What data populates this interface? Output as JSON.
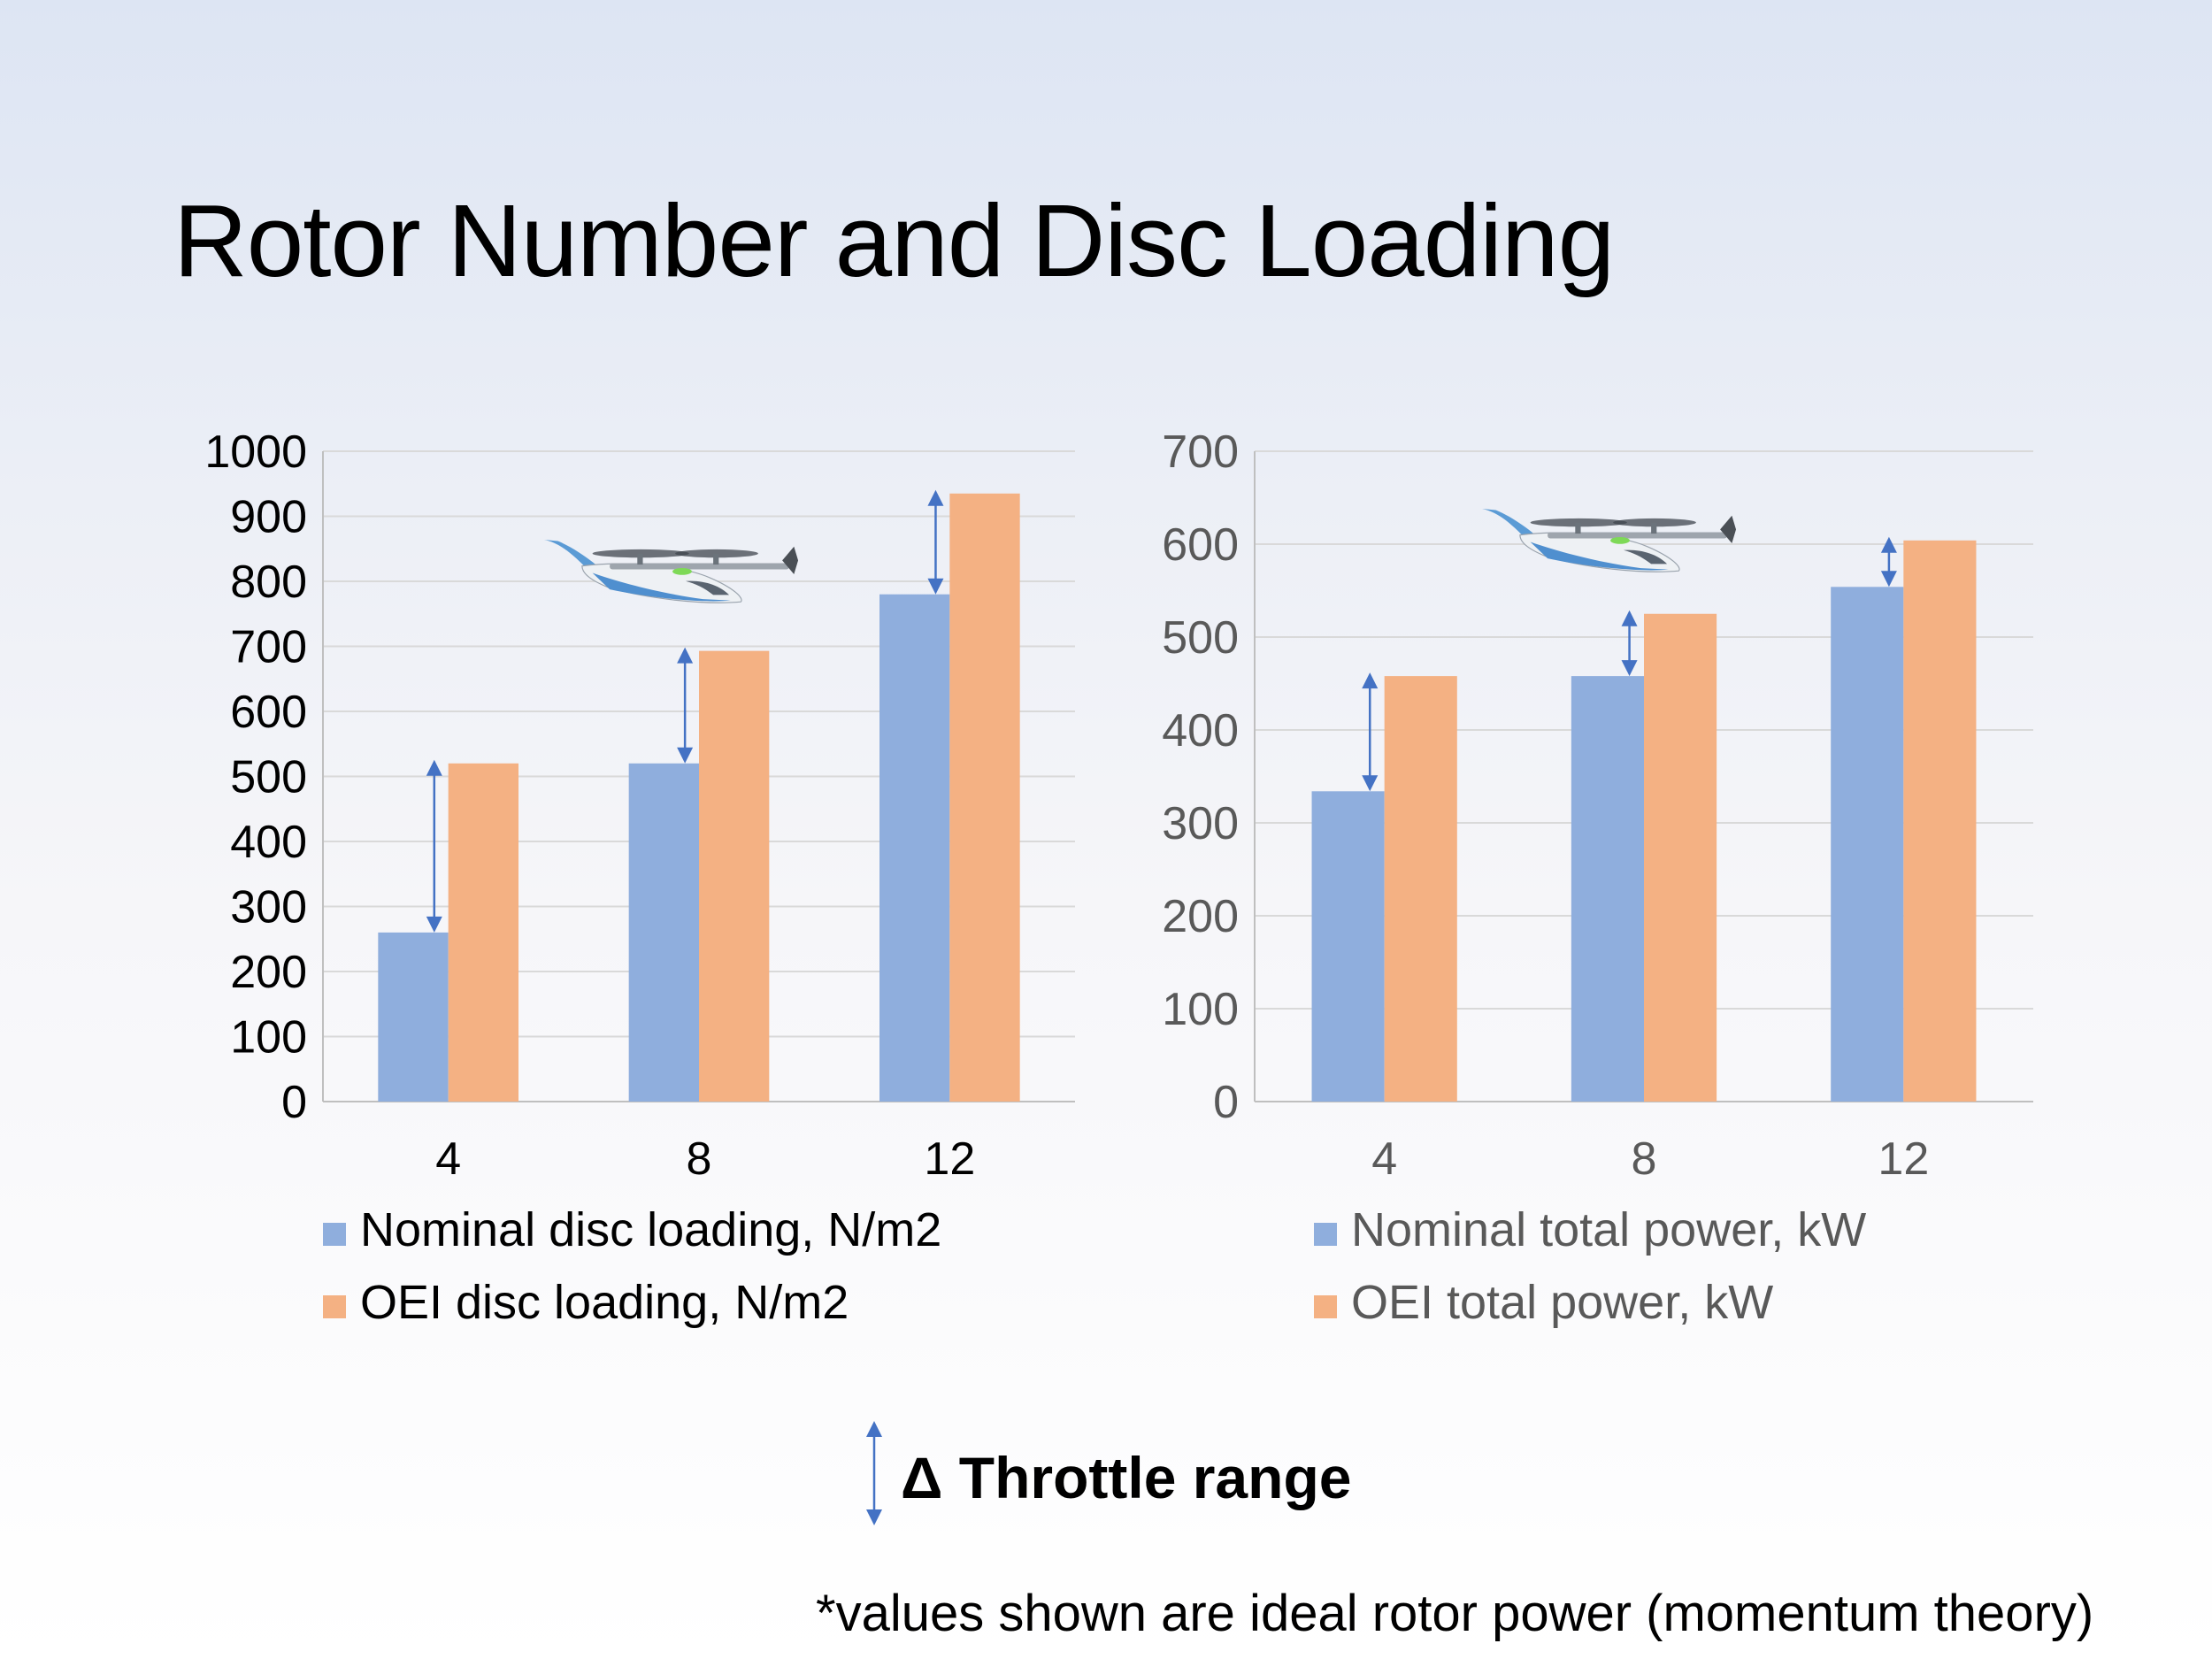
{
  "slide": {
    "title": "Rotor Number and Disc Loading",
    "throttle_label": "Δ Throttle range",
    "footnote": "*values shown are ideal rotor power (momentum theory)"
  },
  "colors": {
    "nominal": "#8faedd",
    "oei": "#f4b183",
    "arrow": "#4472c4",
    "grid": "#d9d9d9",
    "axis": "#bfbfbf"
  },
  "icons": [
    "evtol-aircraft-illustration",
    "double-arrow-icon"
  ],
  "chart_data": [
    {
      "type": "bar",
      "title": "",
      "xlabel": "",
      "ylabel": "",
      "categories": [
        "4",
        "8",
        "12"
      ],
      "ylim": [
        0,
        1000
      ],
      "yticks": [
        0,
        100,
        200,
        300,
        400,
        500,
        600,
        700,
        800,
        900,
        1000
      ],
      "grid": true,
      "legend_position": "bottom",
      "series": [
        {
          "name": "Nominal disc loading, N/m2",
          "values": [
            260,
            520,
            780
          ]
        },
        {
          "name": "OEI disc loading, N/m2",
          "values": [
            520,
            693,
            935
          ]
        }
      ]
    },
    {
      "type": "bar",
      "title": "",
      "xlabel": "",
      "ylabel": "",
      "categories": [
        "4",
        "8",
        "12"
      ],
      "ylim": [
        0,
        700
      ],
      "yticks": [
        0,
        100,
        200,
        300,
        400,
        500,
        600,
        700
      ],
      "grid": true,
      "legend_position": "bottom",
      "series": [
        {
          "name": "Nominal total power, kW",
          "values": [
            334,
            458,
            554
          ]
        },
        {
          "name": "OEI total power, kW",
          "values": [
            458,
            525,
            604
          ]
        }
      ]
    }
  ]
}
